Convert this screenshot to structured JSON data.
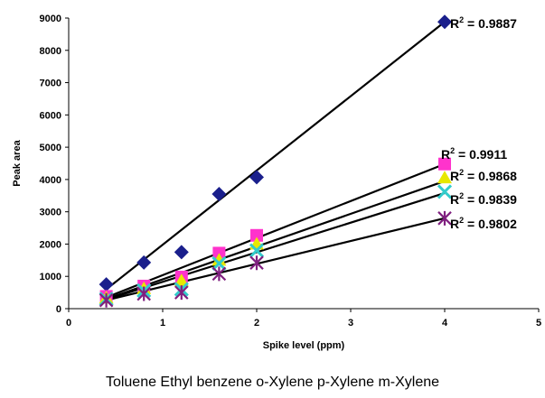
{
  "chart_data": {
    "type": "scatter",
    "title": "",
    "xlabel": "Spike level (ppm)",
    "ylabel": "Peak area",
    "xlim": [
      0,
      5
    ],
    "ylim": [
      0,
      9000
    ],
    "x_ticks": [
      "0",
      "1",
      "2",
      "3",
      "4",
      "5"
    ],
    "y_ticks": [
      "0",
      "1000",
      "2000",
      "3000",
      "4000",
      "5000",
      "6000",
      "7000",
      "8000",
      "9000"
    ],
    "grid": false,
    "legend": "none",
    "trendlines": "linear",
    "series": [
      {
        "marker": "diamond",
        "color": "#1a1f8c",
        "x": [
          0.4,
          0.8,
          1.2,
          1.6,
          2.0,
          4.0
        ],
        "y": [
          750,
          1430,
          1750,
          3550,
          4070,
          8880
        ],
        "fit": [
          [
            0.4,
            600
          ],
          [
            4.0,
            8880
          ]
        ],
        "r2": "0.9887"
      },
      {
        "marker": "square",
        "color": "#ff33cc",
        "x": [
          0.4,
          0.8,
          1.2,
          1.6,
          2.0,
          4.0
        ],
        "y": [
          380,
          700,
          980,
          1720,
          2270,
          4480
        ],
        "fit": [
          [
            0.4,
            350
          ],
          [
            4.0,
            4480
          ]
        ],
        "r2": "0.9911"
      },
      {
        "marker": "triangle",
        "color": "#e8e800",
        "x": [
          0.4,
          0.8,
          1.2,
          1.6,
          2.0,
          4.0
        ],
        "y": [
          330,
          620,
          860,
          1500,
          2000,
          4050
        ],
        "fit": [
          [
            0.4,
            300
          ],
          [
            4.0,
            3950
          ]
        ],
        "r2": "0.9868"
      },
      {
        "marker": "x",
        "color": "#33cccc",
        "x": [
          0.4,
          0.8,
          1.2,
          1.6,
          2.0,
          4.0
        ],
        "y": [
          300,
          560,
          600,
          1400,
          1800,
          3620
        ],
        "fit": [
          [
            0.4,
            280
          ],
          [
            4.0,
            3580
          ]
        ],
        "r2": "0.9839"
      },
      {
        "marker": "star",
        "color": "#7f1f7f",
        "x": [
          0.4,
          0.8,
          1.2,
          1.6,
          2.0,
          4.0
        ],
        "y": [
          260,
          460,
          500,
          1080,
          1420,
          2800
        ],
        "fit": [
          [
            0.4,
            260
          ],
          [
            4.0,
            2800
          ]
        ],
        "r2": "0.9802"
      }
    ],
    "r2_prefix": "R",
    "r2_exponent": "2",
    "r2_separator": " = "
  },
  "caption": "Toluene Ethyl benzene o-Xylene p-Xylene m-Xylene"
}
